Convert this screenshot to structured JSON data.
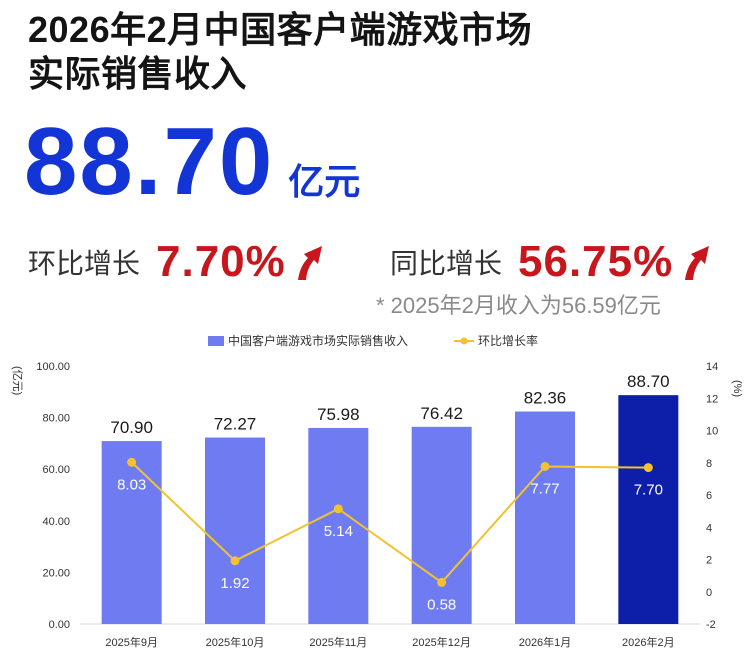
{
  "header": {
    "title_line1": "2026年2月中国客户端游戏市场",
    "title_line2": "实际销售收入",
    "revenue_value": "88.70",
    "revenue_unit": "亿元",
    "mom_label": "环比增长",
    "mom_value": "7.70%",
    "yoy_label": "同比增长",
    "yoy_value": "56.75%",
    "footnote": "* 2025年2月收入为56.59亿元"
  },
  "colors": {
    "accent_blue": "#1435d6",
    "bar": "#6f7bf0",
    "bar_highlight": "#0d1fa8",
    "line": "#f2c230",
    "growth_red": "#c8161d"
  },
  "chart_data": {
    "type": "bar+line",
    "categories": [
      "2025年9月",
      "2025年10月",
      "2025年11月",
      "2025年12月",
      "2026年1月",
      "2026年2月"
    ],
    "series": [
      {
        "name": "中国客户端游戏市场实际销售收入",
        "type": "bar",
        "axis": "left",
        "values": [
          70.9,
          72.27,
          75.98,
          76.42,
          82.36,
          88.7
        ],
        "labels": [
          "70.90",
          "72.27",
          "75.98",
          "76.42",
          "82.36",
          "88.70"
        ]
      },
      {
        "name": "环比增长率",
        "type": "line",
        "axis": "right",
        "values": [
          8.03,
          1.92,
          5.14,
          0.58,
          7.77,
          7.7
        ],
        "labels": [
          "8.03",
          "1.92",
          "5.14",
          "0.58",
          "7.77",
          "7.70"
        ]
      }
    ],
    "ylabel_left": "亿元",
    "ylabel_right": "%",
    "ylim_left": [
      0,
      100
    ],
    "ylim_right": [
      -2,
      14
    ],
    "yticks_left": [
      "0.00",
      "20.00",
      "40.00",
      "60.00",
      "80.00",
      "100.00"
    ],
    "yticks_right": [
      "-2",
      "0",
      "2",
      "4",
      "6",
      "8",
      "10",
      "12",
      "14"
    ],
    "legend_position": "top-center",
    "highlight_index": 5
  }
}
